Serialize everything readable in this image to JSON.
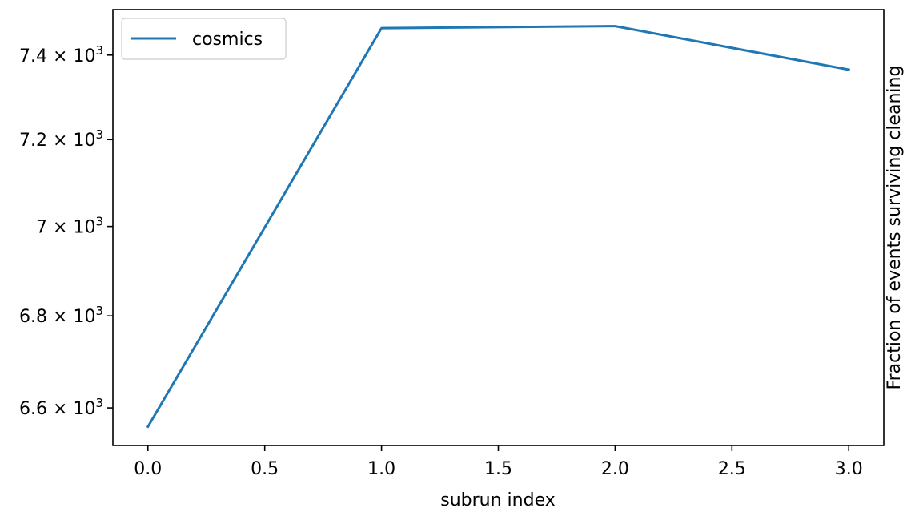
{
  "chart_data": {
    "type": "line",
    "title": "",
    "xlabel": "subrun index",
    "ylabel": "Fraction of events surviving cleaning",
    "ylabel_side": "right",
    "yscale": "log",
    "x": [
      0,
      1,
      2,
      3
    ],
    "series": [
      {
        "name": "cosmics",
        "color": "#1f77b4",
        "values": [
          6560,
          7465,
          7470,
          7365
        ]
      }
    ],
    "xlim": [
      -0.15,
      3.15
    ],
    "ylim": [
      6520,
      7510
    ],
    "xticks": [
      0.0,
      0.5,
      1.0,
      1.5,
      2.0,
      2.5,
      3.0
    ],
    "xtick_labels": [
      "0.0",
      "0.5",
      "1.0",
      "1.5",
      "2.0",
      "2.5",
      "3.0"
    ],
    "yticks": [
      {
        "value": 6600,
        "mantissa": "6.6"
      },
      {
        "value": 6800,
        "mantissa": "6.8"
      },
      {
        "value": 7000,
        "mantissa": "7"
      },
      {
        "value": 7200,
        "mantissa": "7.2"
      },
      {
        "value": 7400,
        "mantissa": "7.4"
      }
    ],
    "ytick_multiplier": "× 10",
    "ytick_exponent": "3",
    "grid": false,
    "legend_position": "top-left"
  }
}
